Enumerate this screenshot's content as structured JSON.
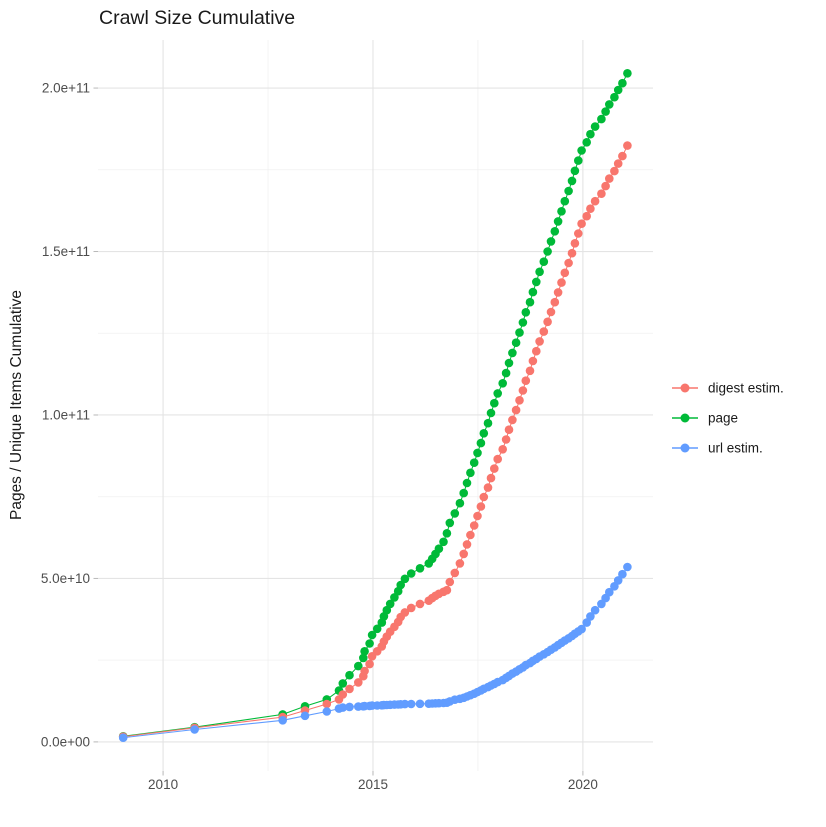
{
  "chart_data": {
    "type": "line",
    "title": "Crawl Size Cumulative",
    "xlabel": "",
    "ylabel": "Pages / Unique Items Cumulative",
    "value_unit": "billions (1e9) of pages / unique items",
    "background": "#ffffff",
    "grid": "on",
    "axes": {
      "xlim": [
        2008.45,
        2021.67
      ],
      "ylim_billions": [
        -8.9,
        214.7
      ],
      "x_major_ticks": [
        2010,
        2015,
        2020
      ],
      "x_tick_labels": [
        "2010",
        "2015",
        "2020"
      ],
      "x_minor_ticks": [
        2012.5,
        2017.5
      ],
      "y_major_ticks_billions": [
        0,
        50,
        100,
        150,
        200
      ],
      "y_tick_labels": [
        "0.0e+00",
        "5.0e+10",
        "1.0e+11",
        "1.5e+11",
        "2.0e+11"
      ],
      "y_minor_ticks_billions": [
        25,
        75,
        125,
        175
      ]
    },
    "legend": {
      "position": "right",
      "entries": [
        {
          "label": "digest estim.",
          "color": "#F8766D"
        },
        {
          "label": "page",
          "color": "#00BA38"
        },
        {
          "label": "url estim.",
          "color": "#619CFF"
        }
      ]
    },
    "series": [
      {
        "name": "page",
        "color": "#00BA38",
        "points": [
          [
            2009.05,
            1.7
          ],
          [
            2010.75,
            4.5
          ],
          [
            2012.85,
            8.4
          ],
          [
            2013.38,
            10.9
          ],
          [
            2013.9,
            13.0
          ],
          [
            2014.19,
            15.7
          ],
          [
            2014.28,
            17.9
          ],
          [
            2014.44,
            20.4
          ],
          [
            2014.65,
            23.2
          ],
          [
            2014.77,
            25.7
          ],
          [
            2014.8,
            27.7
          ],
          [
            2014.92,
            30.1
          ],
          [
            2014.98,
            32.7
          ],
          [
            2015.1,
            34.6
          ],
          [
            2015.21,
            36.5
          ],
          [
            2015.26,
            38.4
          ],
          [
            2015.33,
            40.3
          ],
          [
            2015.41,
            42.2
          ],
          [
            2015.51,
            44.2
          ],
          [
            2015.6,
            46.1
          ],
          [
            2015.66,
            48.0
          ],
          [
            2015.76,
            49.9
          ],
          [
            2015.91,
            51.5
          ],
          [
            2016.12,
            53.1
          ],
          [
            2016.33,
            54.6
          ],
          [
            2016.41,
            56.0
          ],
          [
            2016.49,
            57.5
          ],
          [
            2016.57,
            59.1
          ],
          [
            2016.68,
            61.2
          ],
          [
            2016.76,
            63.8
          ],
          [
            2016.83,
            67.0
          ],
          [
            2016.95,
            69.9
          ],
          [
            2017.07,
            73.0
          ],
          [
            2017.16,
            76.1
          ],
          [
            2017.24,
            79.2
          ],
          [
            2017.32,
            82.3
          ],
          [
            2017.41,
            85.4
          ],
          [
            2017.49,
            88.4
          ],
          [
            2017.57,
            91.4
          ],
          [
            2017.64,
            94.4
          ],
          [
            2017.74,
            97.5
          ],
          [
            2017.81,
            100.6
          ],
          [
            2017.89,
            103.6
          ],
          [
            2017.97,
            106.6
          ],
          [
            2018.09,
            109.7
          ],
          [
            2018.17,
            112.8
          ],
          [
            2018.24,
            115.9
          ],
          [
            2018.32,
            119.0
          ],
          [
            2018.41,
            122.1
          ],
          [
            2018.49,
            125.2
          ],
          [
            2018.57,
            128.3
          ],
          [
            2018.64,
            131.4
          ],
          [
            2018.74,
            134.5
          ],
          [
            2018.81,
            137.6
          ],
          [
            2018.89,
            140.7
          ],
          [
            2018.97,
            143.8
          ],
          [
            2019.07,
            146.9
          ],
          [
            2019.16,
            150.0
          ],
          [
            2019.24,
            153.1
          ],
          [
            2019.33,
            156.2
          ],
          [
            2019.41,
            159.2
          ],
          [
            2019.49,
            162.3
          ],
          [
            2019.57,
            165.4
          ],
          [
            2019.66,
            168.5
          ],
          [
            2019.74,
            171.6
          ],
          [
            2019.81,
            174.7
          ],
          [
            2019.89,
            177.8
          ],
          [
            2019.97,
            180.9
          ],
          [
            2020.09,
            183.4
          ],
          [
            2020.18,
            185.9
          ],
          [
            2020.29,
            188.2
          ],
          [
            2020.44,
            190.5
          ],
          [
            2020.54,
            192.8
          ],
          [
            2020.63,
            195.0
          ],
          [
            2020.75,
            197.2
          ],
          [
            2020.84,
            199.4
          ],
          [
            2020.94,
            201.5
          ],
          [
            2021.06,
            204.5
          ]
        ]
      },
      {
        "name": "digest estim.",
        "color": "#F8766D",
        "points": [
          [
            2009.05,
            1.6
          ],
          [
            2010.75,
            4.3
          ],
          [
            2012.85,
            7.6
          ],
          [
            2013.38,
            9.6
          ],
          [
            2013.9,
            11.6
          ],
          [
            2014.19,
            13.0
          ],
          [
            2014.28,
            14.5
          ],
          [
            2014.44,
            16.2
          ],
          [
            2014.65,
            18.2
          ],
          [
            2014.77,
            20.1
          ],
          [
            2014.8,
            21.7
          ],
          [
            2014.92,
            23.8
          ],
          [
            2014.98,
            26.2
          ],
          [
            2015.1,
            27.7
          ],
          [
            2015.21,
            29.2
          ],
          [
            2015.26,
            30.7
          ],
          [
            2015.33,
            32.2
          ],
          [
            2015.41,
            33.7
          ],
          [
            2015.51,
            35.2
          ],
          [
            2015.6,
            36.7
          ],
          [
            2015.66,
            38.2
          ],
          [
            2015.76,
            39.6
          ],
          [
            2015.91,
            41.0
          ],
          [
            2016.12,
            42.2
          ],
          [
            2016.33,
            43.2
          ],
          [
            2016.41,
            44.0
          ],
          [
            2016.49,
            44.7
          ],
          [
            2016.57,
            45.3
          ],
          [
            2016.68,
            45.9
          ],
          [
            2016.76,
            46.4
          ],
          [
            2016.83,
            48.9
          ],
          [
            2016.95,
            51.7
          ],
          [
            2017.07,
            54.6
          ],
          [
            2017.16,
            57.5
          ],
          [
            2017.24,
            60.4
          ],
          [
            2017.32,
            63.3
          ],
          [
            2017.41,
            66.2
          ],
          [
            2017.49,
            69.1
          ],
          [
            2017.57,
            72.0
          ],
          [
            2017.64,
            74.9
          ],
          [
            2017.74,
            77.8
          ],
          [
            2017.81,
            80.7
          ],
          [
            2017.89,
            83.6
          ],
          [
            2017.97,
            86.5
          ],
          [
            2018.09,
            89.5
          ],
          [
            2018.17,
            92.5
          ],
          [
            2018.24,
            95.5
          ],
          [
            2018.32,
            98.5
          ],
          [
            2018.41,
            101.5
          ],
          [
            2018.49,
            104.5
          ],
          [
            2018.57,
            107.5
          ],
          [
            2018.64,
            110.5
          ],
          [
            2018.74,
            113.5
          ],
          [
            2018.81,
            116.5
          ],
          [
            2018.89,
            119.5
          ],
          [
            2018.97,
            122.5
          ],
          [
            2019.07,
            125.5
          ],
          [
            2019.16,
            128.5
          ],
          [
            2019.24,
            131.5
          ],
          [
            2019.33,
            134.5
          ],
          [
            2019.41,
            137.5
          ],
          [
            2019.49,
            140.5
          ],
          [
            2019.57,
            143.5
          ],
          [
            2019.66,
            146.5
          ],
          [
            2019.74,
            149.5
          ],
          [
            2019.81,
            152.5
          ],
          [
            2019.89,
            155.5
          ],
          [
            2019.97,
            158.5
          ],
          [
            2020.09,
            160.8
          ],
          [
            2020.18,
            163.1
          ],
          [
            2020.29,
            165.4
          ],
          [
            2020.44,
            167.7
          ],
          [
            2020.54,
            170.0
          ],
          [
            2020.63,
            172.3
          ],
          [
            2020.75,
            174.6
          ],
          [
            2020.84,
            176.9
          ],
          [
            2020.94,
            179.2
          ],
          [
            2021.06,
            182.4
          ]
        ]
      },
      {
        "name": "url estim.",
        "color": "#619CFF",
        "points": [
          [
            2009.05,
            1.3
          ],
          [
            2010.75,
            3.8
          ],
          [
            2012.85,
            6.6
          ],
          [
            2013.38,
            8.0
          ],
          [
            2013.9,
            9.3
          ],
          [
            2014.19,
            10.2
          ],
          [
            2014.28,
            10.5
          ],
          [
            2014.44,
            10.7
          ],
          [
            2014.65,
            10.8
          ],
          [
            2014.77,
            10.9
          ],
          [
            2014.8,
            10.95
          ],
          [
            2014.92,
            11.0
          ],
          [
            2014.98,
            11.1
          ],
          [
            2015.1,
            11.15
          ],
          [
            2015.21,
            11.2
          ],
          [
            2015.26,
            11.25
          ],
          [
            2015.33,
            11.3
          ],
          [
            2015.41,
            11.35
          ],
          [
            2015.51,
            11.4
          ],
          [
            2015.6,
            11.45
          ],
          [
            2015.66,
            11.5
          ],
          [
            2015.76,
            11.55
          ],
          [
            2015.91,
            11.6
          ],
          [
            2016.12,
            11.65
          ],
          [
            2016.33,
            11.7
          ],
          [
            2016.41,
            11.75
          ],
          [
            2016.49,
            11.8
          ],
          [
            2016.57,
            11.85
          ],
          [
            2016.68,
            11.9
          ],
          [
            2016.76,
            12.0
          ],
          [
            2016.83,
            12.4
          ],
          [
            2016.95,
            12.9
          ],
          [
            2017.07,
            13.2
          ],
          [
            2017.16,
            13.5
          ],
          [
            2017.24,
            13.9
          ],
          [
            2017.32,
            14.3
          ],
          [
            2017.41,
            14.75
          ],
          [
            2017.49,
            15.25
          ],
          [
            2017.57,
            15.75
          ],
          [
            2017.64,
            16.25
          ],
          [
            2017.74,
            16.75
          ],
          [
            2017.81,
            17.25
          ],
          [
            2017.89,
            17.75
          ],
          [
            2017.97,
            18.3
          ],
          [
            2018.09,
            18.9
          ],
          [
            2018.17,
            19.6
          ],
          [
            2018.24,
            20.2
          ],
          [
            2018.32,
            20.9
          ],
          [
            2018.41,
            21.5
          ],
          [
            2018.49,
            22.2
          ],
          [
            2018.57,
            22.8
          ],
          [
            2018.64,
            23.5
          ],
          [
            2018.74,
            24.1
          ],
          [
            2018.81,
            24.8
          ],
          [
            2018.89,
            25.4
          ],
          [
            2018.97,
            26.1
          ],
          [
            2019.07,
            26.8
          ],
          [
            2019.16,
            27.5
          ],
          [
            2019.24,
            28.2
          ],
          [
            2019.33,
            28.9
          ],
          [
            2019.41,
            29.6
          ],
          [
            2019.49,
            30.3
          ],
          [
            2019.57,
            31.0
          ],
          [
            2019.66,
            31.7
          ],
          [
            2019.74,
            32.4
          ],
          [
            2019.81,
            33.1
          ],
          [
            2019.89,
            33.8
          ],
          [
            2019.97,
            34.5
          ],
          [
            2020.09,
            36.5
          ],
          [
            2020.18,
            38.4
          ],
          [
            2020.29,
            40.3
          ],
          [
            2020.44,
            42.2
          ],
          [
            2020.54,
            44.0
          ],
          [
            2020.63,
            45.8
          ],
          [
            2020.75,
            47.6
          ],
          [
            2020.84,
            49.4
          ],
          [
            2020.94,
            51.3
          ],
          [
            2021.06,
            53.5
          ]
        ]
      }
    ]
  }
}
